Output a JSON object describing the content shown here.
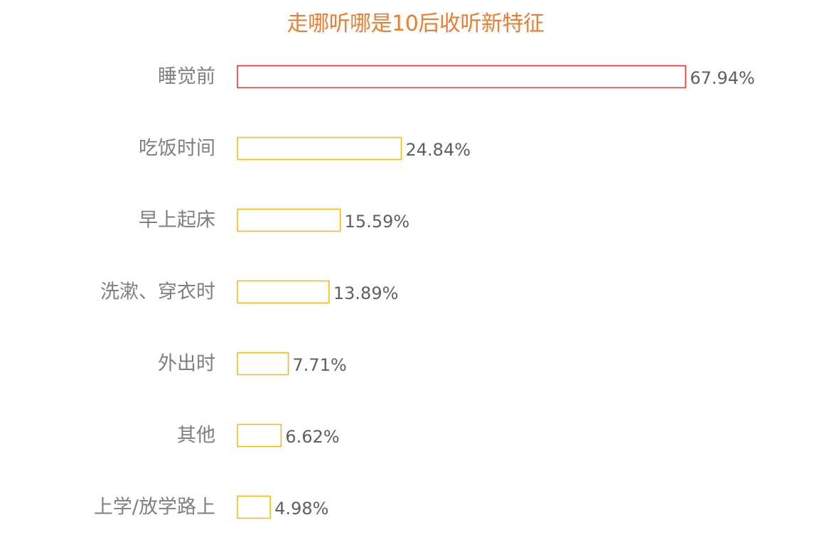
{
  "chart_data": {
    "type": "bar",
    "orientation": "horizontal",
    "title": "走哪听哪是10后收听新特征",
    "categories": [
      "睡觉前",
      "吃饭时间",
      "早上起床",
      "洗漱、穿衣时",
      "外出时",
      "其他",
      "上学/放学路上"
    ],
    "values": [
      67.94,
      24.84,
      15.59,
      13.89,
      7.71,
      6.62,
      4.98
    ],
    "value_labels": [
      "67.94%",
      "24.84%",
      "15.59%",
      "13.89%",
      "7.71%",
      "6.62%",
      "4.98%"
    ],
    "value_unit": "%",
    "xlim": [
      0,
      68
    ],
    "grid": false,
    "legend": "none",
    "bar_fill": "#ffffff",
    "highlight_color": "#E8362E",
    "bar_outline_color": "#F6BA1C",
    "title_color": "#EE7C31",
    "label_color": "#7f7f7f",
    "value_label_color": "#5f5f5f"
  }
}
